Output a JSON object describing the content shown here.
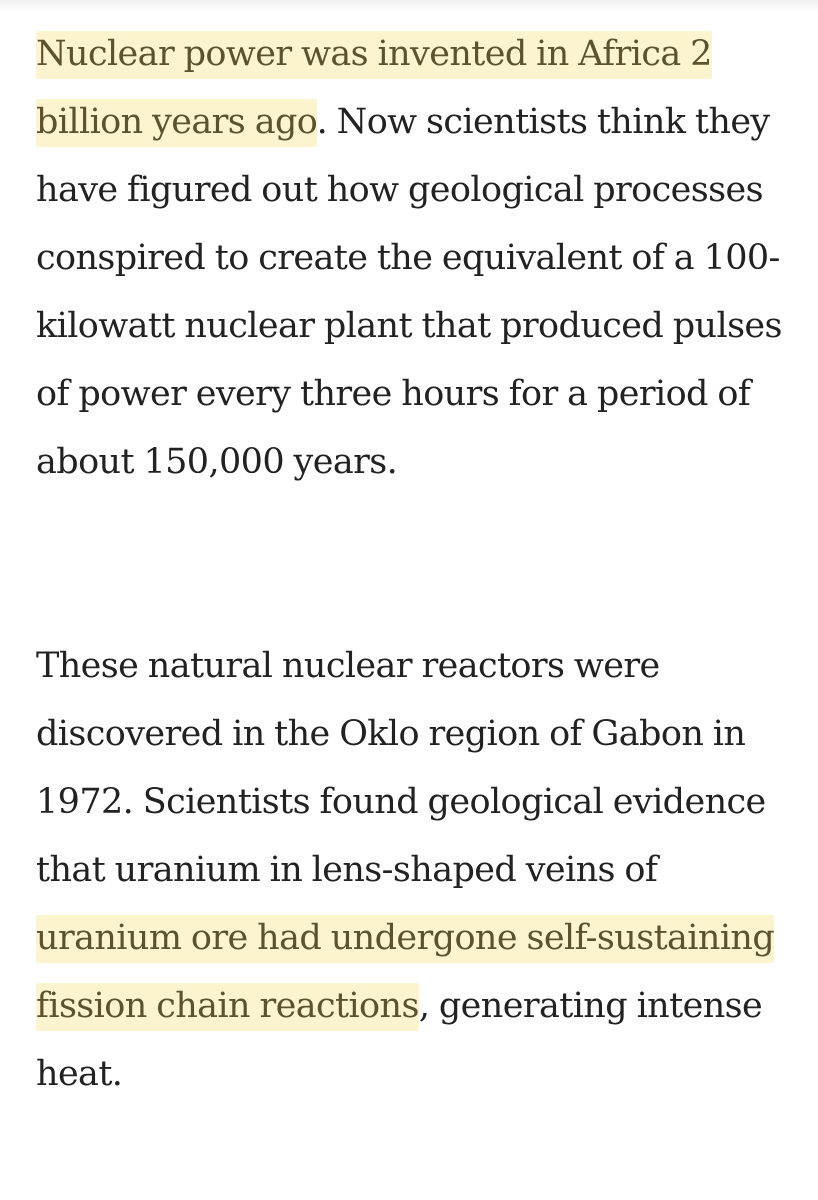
{
  "article": {
    "paragraph_1": {
      "highlight": "Nuclear power was invented in Africa 2 billion years ago",
      "rest": ". Now scientists think they have figured out how geological processes conspired to create the equivalent of a 100-kilowatt nuclear plant that produced pulses of power every three hours for a period of about 150,000 years."
    },
    "paragraph_2": {
      "before": "These natural nuclear reactors were discovered in the Oklo region of Gabon in 1972. Scientists found geological evidence that uranium in lens-shaped veins of ",
      "highlight": "uranium ore had undergone self-sustaining fission chain reactions",
      "after": ", generating intense heat."
    }
  },
  "colors": {
    "text": "#222222",
    "highlight_background": "#fcf4cf",
    "highlight_text": "#5b5230"
  }
}
